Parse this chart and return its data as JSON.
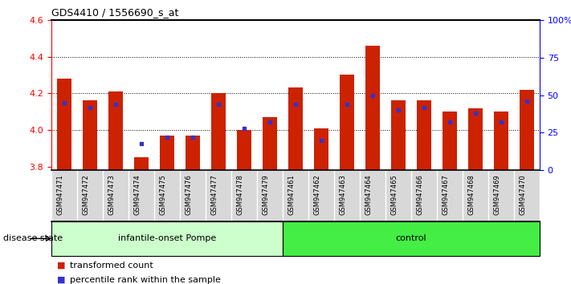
{
  "title": "GDS4410 / 1556690_s_at",
  "samples": [
    "GSM947471",
    "GSM947472",
    "GSM947473",
    "GSM947474",
    "GSM947475",
    "GSM947476",
    "GSM947477",
    "GSM947478",
    "GSM947479",
    "GSM947461",
    "GSM947462",
    "GSM947463",
    "GSM947464",
    "GSM947465",
    "GSM947466",
    "GSM947467",
    "GSM947468",
    "GSM947469",
    "GSM947470"
  ],
  "red_values": [
    4.28,
    4.16,
    4.21,
    3.85,
    3.97,
    3.97,
    4.2,
    4.0,
    4.07,
    4.23,
    4.01,
    4.3,
    4.46,
    4.16,
    4.16,
    4.1,
    4.12,
    4.1,
    4.22
  ],
  "blue_values": [
    45,
    42,
    44,
    18,
    22,
    22,
    44,
    28,
    32,
    44,
    20,
    44,
    50,
    40,
    42,
    32,
    38,
    32,
    46
  ],
  "y_min": 3.78,
  "y_max": 4.6,
  "y_ticks": [
    3.8,
    4.0,
    4.2,
    4.4,
    4.6
  ],
  "right_y_ticks": [
    0,
    25,
    50,
    75,
    100
  ],
  "right_y_labels": [
    "0",
    "25",
    "50",
    "75",
    "100%"
  ],
  "group1_label": "infantile-onset Pompe",
  "group2_label": "control",
  "group1_count": 9,
  "group2_count": 10,
  "disease_state_label": "disease state",
  "legend1": "transformed count",
  "legend2": "percentile rank within the sample",
  "bar_color": "#cc2200",
  "dot_color": "#3333cc",
  "group1_bg": "#ccffcc",
  "group2_bg": "#44ee44",
  "xlabel_bg": "#d8d8d8",
  "bar_width": 0.55
}
